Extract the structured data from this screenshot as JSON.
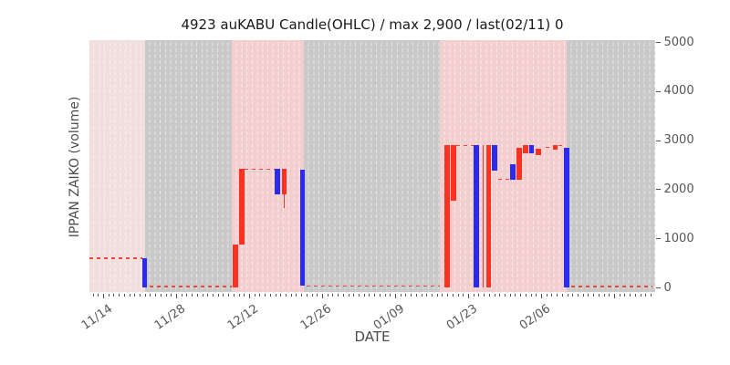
{
  "chart_data": {
    "type": "candlestick",
    "title": "4923 auKABU Candle(OHLC) / max 2,900 / last(02/11) 0",
    "xlabel": "DATE",
    "ylabel": "IPPAN ZAIKO (volume)",
    "ylim": [
      0,
      5000
    ],
    "y_ticks": [
      0,
      1000,
      2000,
      3000,
      4000,
      5000
    ],
    "x_ticks": [
      {
        "label": "11/14",
        "day": 0
      },
      {
        "label": "11/28",
        "day": 14
      },
      {
        "label": "12/12",
        "day": 28
      },
      {
        "label": "12/26",
        "day": 42
      },
      {
        "label": "01/09",
        "day": 56
      },
      {
        "label": "01/23",
        "day": 70
      },
      {
        "label": "02/06",
        "day": 84
      }
    ],
    "x_day_range": [
      -2.6,
      105.8
    ],
    "minor_tick_days": 1,
    "major_tick_days": 14,
    "grid": "white dashed vertical line per day",
    "legend_position": "none",
    "max_value": 2900,
    "last_point": {
      "date": "02/11",
      "value": 0
    },
    "bands": [
      {
        "kind": "pink_light",
        "d0": -2.6,
        "d1": 8.0
      },
      {
        "kind": "gray",
        "d0": 8.0,
        "d1": 24.7
      },
      {
        "kind": "pink",
        "d0": 24.7,
        "d1": 38.5
      },
      {
        "kind": "gray",
        "d0": 38.5,
        "d1": 64.6
      },
      {
        "kind": "pink",
        "d0": 64.6,
        "d1": 88.9
      },
      {
        "kind": "gray",
        "d0": 88.9,
        "d1": 105.8
      }
    ],
    "candles": [
      {
        "date": "11/22",
        "day": 8.0,
        "low": 0,
        "high": 600,
        "dir": "down"
      },
      {
        "date": "12/09",
        "day": 25.4,
        "low": 0,
        "high": 880,
        "dir": "up"
      },
      {
        "date": "12/10",
        "day": 26.6,
        "low": 880,
        "high": 2420,
        "dir": "up"
      },
      {
        "date": "12/17",
        "day": 33.4,
        "low": 1900,
        "high": 2420,
        "dir": "down"
      },
      {
        "date": "12/18",
        "day": 34.7,
        "low": 1900,
        "high": 2420,
        "dir": "up",
        "wick_low": 1630
      },
      {
        "date": "12/22",
        "day": 38.2,
        "low": 50,
        "high": 2400,
        "dir": "down"
      },
      {
        "date": "01/19",
        "day": 66.0,
        "low": 0,
        "high": 2900,
        "dir": "up"
      },
      {
        "date": "01/20",
        "day": 67.2,
        "low": 1780,
        "high": 2900,
        "dir": "up"
      },
      {
        "date": "01/24",
        "day": 71.6,
        "low": 0,
        "high": 2900,
        "dir": "down"
      },
      {
        "date": "01/26",
        "day": 72.9,
        "low": 0,
        "high": 2900,
        "dir": "up",
        "thin": true
      },
      {
        "date": "01/27",
        "day": 73.9,
        "low": 0,
        "high": 2900,
        "dir": "up"
      },
      {
        "date": "01/28",
        "day": 75.1,
        "low": 2390,
        "high": 2900,
        "dir": "down"
      },
      {
        "date": "01/31",
        "day": 78.6,
        "low": 2210,
        "high": 2520,
        "dir": "down"
      },
      {
        "date": "02/01",
        "day": 79.8,
        "low": 2210,
        "high": 2860,
        "dir": "up"
      },
      {
        "date": "02/03",
        "day": 81.0,
        "low": 2750,
        "high": 2900,
        "dir": "up"
      },
      {
        "date": "02/04",
        "day": 82.2,
        "low": 2750,
        "high": 2900,
        "dir": "down"
      },
      {
        "date": "02/05",
        "day": 83.5,
        "low": 2710,
        "high": 2840,
        "dir": "up"
      },
      {
        "date": "02/08",
        "day": 86.7,
        "low": 2810,
        "high": 2900,
        "dir": "up"
      },
      {
        "date": "02/11",
        "day": 88.9,
        "low": 0,
        "high": 2850,
        "dir": "down"
      }
    ],
    "level_dashes": [
      {
        "value": 600,
        "d0": -2.6,
        "d1": 7.6
      },
      {
        "value": 30,
        "d0": 8.9,
        "d1": 24.6
      },
      {
        "value": 2420,
        "d0": 27.2,
        "d1": 33.0
      },
      {
        "value": 40,
        "d0": 39.0,
        "d1": 64.5
      },
      {
        "value": 2900,
        "d0": 67.8,
        "d1": 71.0
      },
      {
        "value": 2210,
        "d0": 75.8,
        "d1": 77.9
      },
      {
        "value": 2860,
        "d0": 84.9,
        "d1": 86.0
      },
      {
        "value": 2900,
        "d0": 87.3,
        "d1": 88.4
      },
      {
        "value": 30,
        "d0": 89.7,
        "d1": 105.4
      }
    ],
    "colors": {
      "up": "#f93222",
      "down": "#2b2bef",
      "band_gray": "#c9c9c9",
      "band_pink": "#f2cfce",
      "band_pink_light": "#f0dfdc",
      "dash_line": "#f4453b",
      "gridline": "rgba(255,255,255,0.55)",
      "tick_text": "#555555",
      "axis_label_text": "#4d4d4d",
      "title_text": "#1a1a1a",
      "background": "#ffffff"
    }
  }
}
